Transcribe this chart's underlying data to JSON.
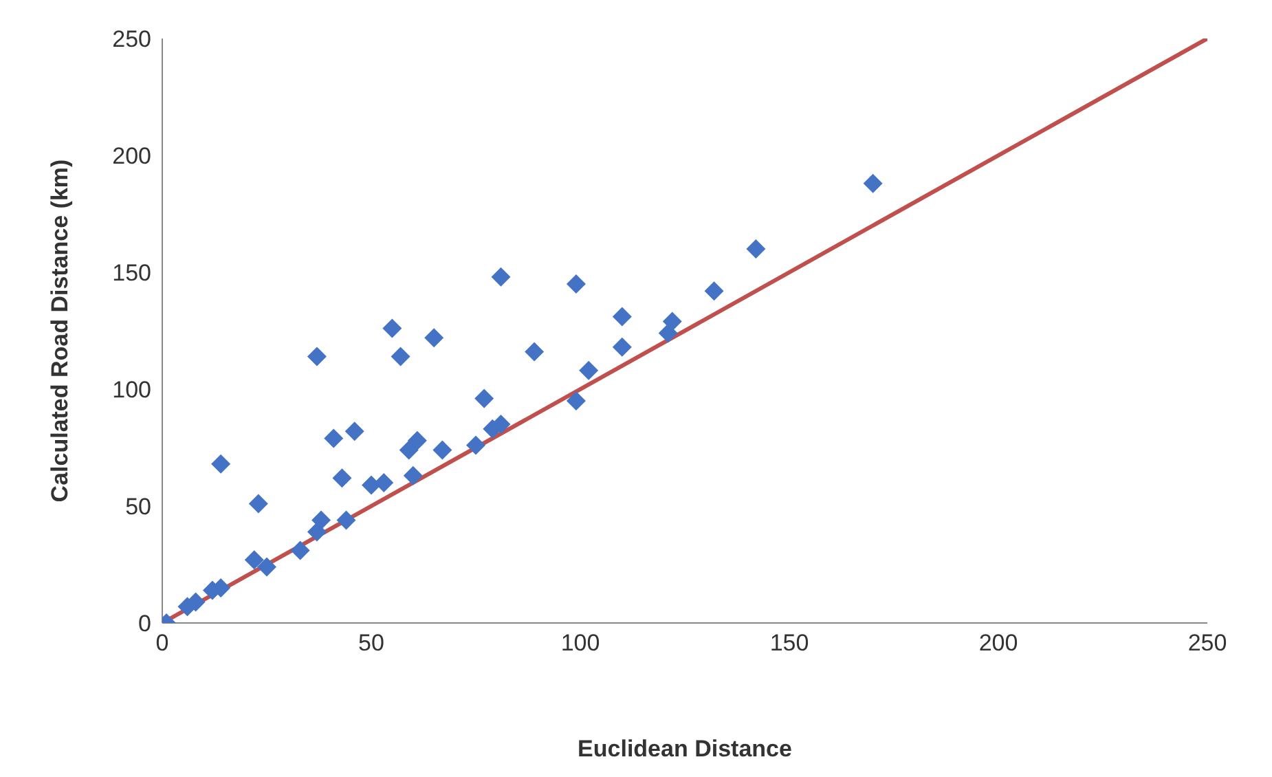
{
  "chart_data": {
    "type": "scatter",
    "xlabel": "Euclidean Distance",
    "ylabel": "Calculated Road Distance (km)",
    "xlim": [
      0,
      250
    ],
    "ylim": [
      0,
      250
    ],
    "xticks": [
      0,
      50,
      100,
      150,
      200,
      250
    ],
    "yticks": [
      0,
      50,
      100,
      150,
      200,
      250
    ],
    "grid": false,
    "legend": false,
    "marker": "diamond",
    "series": [
      {
        "color": "#4472c4",
        "x": [
          1,
          6,
          8,
          12,
          14,
          14,
          23,
          22,
          25,
          33,
          37,
          38,
          37,
          41,
          43,
          44,
          46,
          50,
          53,
          55,
          57,
          59,
          60,
          61,
          65,
          67,
          75,
          77,
          79,
          81,
          81,
          89,
          99,
          99,
          102,
          110,
          110,
          121,
          122,
          132,
          142,
          170
        ],
        "values": [
          0,
          7,
          9,
          14,
          15,
          68,
          51,
          27,
          24,
          31,
          39,
          44,
          114,
          79,
          62,
          44,
          82,
          59,
          60,
          126,
          114,
          74,
          63,
          78,
          122,
          74,
          76,
          96,
          83,
          85,
          148,
          116,
          95,
          145,
          108,
          118,
          131,
          124,
          129,
          142,
          160,
          188
        ]
      },
      {
        "type": "line",
        "color": "#c0504d",
        "marker": "none",
        "x": [
          0,
          250
        ],
        "values": [
          0,
          250
        ]
      }
    ]
  }
}
